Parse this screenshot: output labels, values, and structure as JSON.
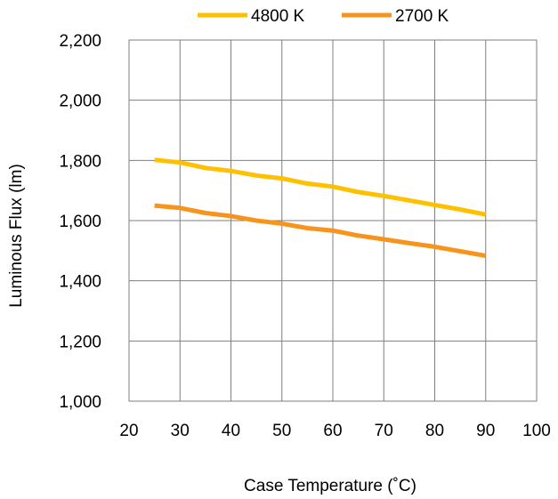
{
  "chart_data": {
    "type": "line",
    "xlabel": "Case Temperature (˚C)",
    "ylabel": "Luminous Flux (lm)",
    "xlim": [
      20,
      100
    ],
    "ylim": [
      1000,
      2200
    ],
    "x_ticks": [
      20,
      30,
      40,
      50,
      60,
      70,
      80,
      90,
      100
    ],
    "y_ticks": [
      1000,
      1200,
      1400,
      1600,
      1800,
      2000,
      2200
    ],
    "x_tick_labels": [
      "20",
      "30",
      "40",
      "50",
      "60",
      "70",
      "80",
      "90",
      "100"
    ],
    "y_tick_labels": [
      "1,000",
      "1,200",
      "1,400",
      "1,600",
      "1,800",
      "2,000",
      "2,200"
    ],
    "grid": true,
    "legend_position": "top",
    "series": [
      {
        "name": "4800 K",
        "color": "#ffc000",
        "x": [
          25,
          30,
          35,
          40,
          45,
          50,
          55,
          60,
          65,
          70,
          75,
          80,
          85,
          90
        ],
        "y": [
          1802,
          1793,
          1775,
          1765,
          1750,
          1740,
          1723,
          1713,
          1695,
          1682,
          1667,
          1652,
          1637,
          1620
        ]
      },
      {
        "name": "2700 K",
        "color": "#f7941d",
        "x": [
          25,
          30,
          35,
          40,
          45,
          50,
          55,
          60,
          65,
          70,
          75,
          80,
          85,
          90
        ],
        "y": [
          1650,
          1642,
          1625,
          1615,
          1600,
          1590,
          1575,
          1567,
          1550,
          1538,
          1525,
          1513,
          1498,
          1483
        ]
      }
    ]
  }
}
